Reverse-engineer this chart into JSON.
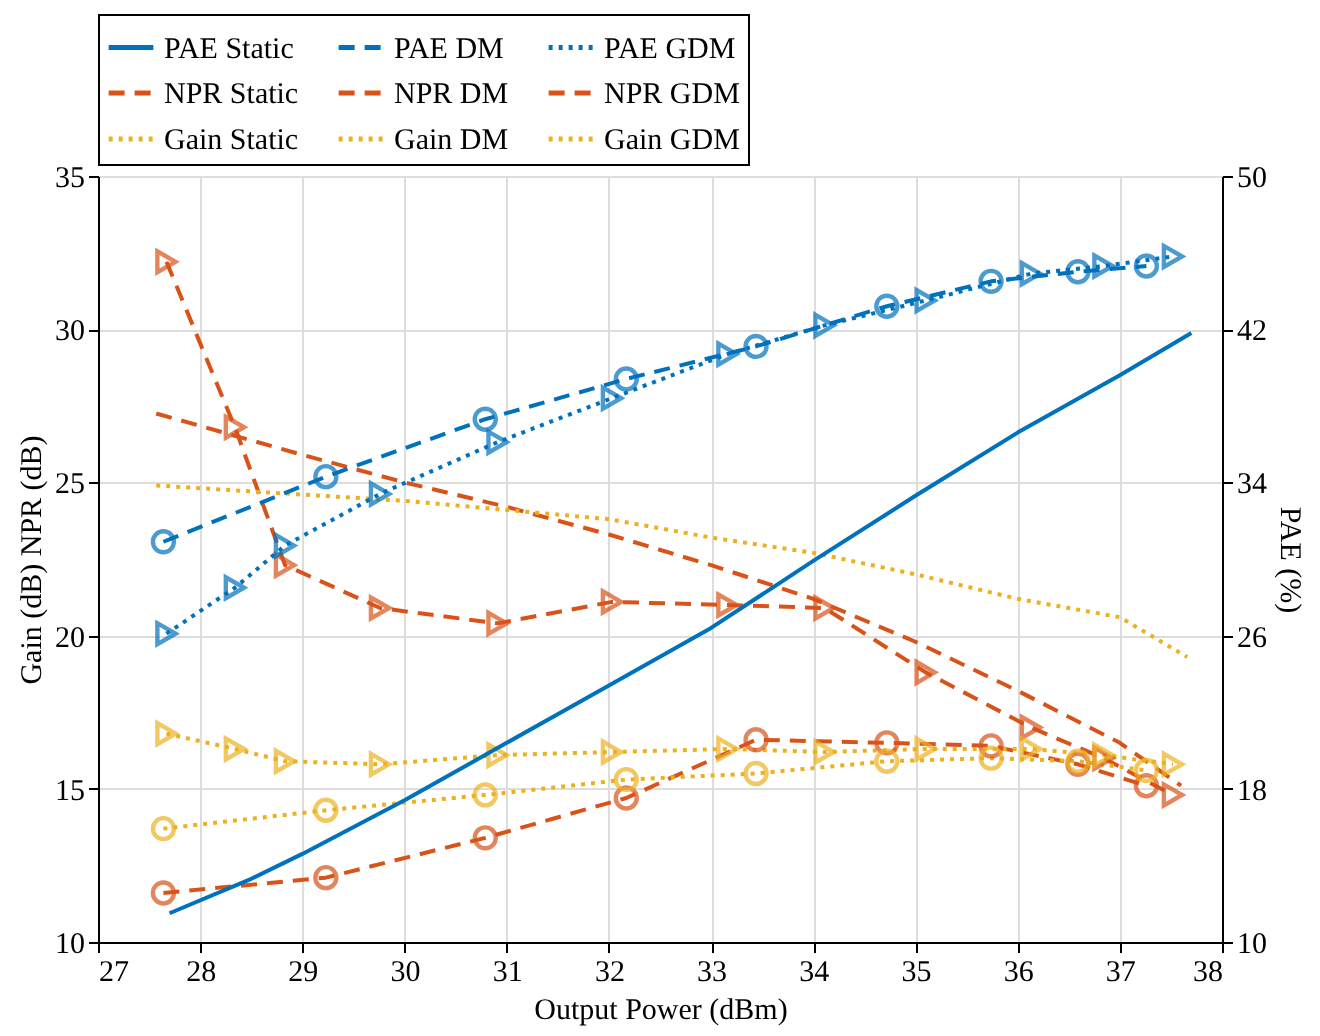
{
  "chart_data": {
    "type": "line",
    "xlabel": "Output Power (dBm)",
    "ylabel": "Gain (dB) NPR (dB)",
    "y2label": "PAE (%)",
    "xlim": [
      27,
      38
    ],
    "xticks": [
      27,
      28,
      29,
      30,
      31,
      32,
      33,
      34,
      35,
      36,
      37,
      38
    ],
    "ylim": [
      10,
      35
    ],
    "yticks": [
      10,
      15,
      20,
      25,
      30,
      35
    ],
    "y2lim": [
      10,
      50
    ],
    "y2ticks": [
      10,
      18,
      26,
      34,
      42,
      50
    ],
    "grid": true,
    "legend": "top",
    "series": [
      {
        "name": "PAE Static",
        "color": "#0072bd",
        "axis": "y2",
        "marker": "none",
        "line_style": "solid",
        "x": [
          27.7,
          28.5,
          29,
          30,
          31,
          32,
          33,
          34,
          35,
          36,
          37,
          37.7
        ],
        "values": [
          11.5,
          13.3,
          14.6,
          17.4,
          20.4,
          23.4,
          26.4,
          29.9,
          33.3,
          36.6,
          39.6,
          41.8
        ]
      },
      {
        "name": "PAE DM",
        "color": "#0072bd",
        "axis": "y2",
        "marker": "circle",
        "line_style": "dashed",
        "x": [
          27.64,
          29.23,
          30.79,
          32.17,
          33.44,
          34.72,
          35.74,
          36.59,
          37.26
        ],
        "values": [
          30.9,
          34.3,
          37.3,
          39.4,
          41.1,
          43.2,
          44.5,
          45.0,
          45.3
        ]
      },
      {
        "name": "PAE GDM",
        "color": "#0072bd",
        "axis": "y2",
        "marker": "triangle",
        "line_style": "dotted",
        "x": [
          27.67,
          28.34,
          28.83,
          29.76,
          30.91,
          32.03,
          33.16,
          34.11,
          35.1,
          36.13,
          36.84,
          37.52
        ],
        "values": [
          26.1,
          28.5,
          30.7,
          33.4,
          36.1,
          38.4,
          40.7,
          42.2,
          43.5,
          44.9,
          45.3,
          45.8
        ]
      },
      {
        "name": "NPR Static",
        "color": "#d95319",
        "marker": "none",
        "line_style": "dashed",
        "x": [
          27.57,
          29,
          30,
          31,
          32,
          33,
          34,
          35,
          36,
          37,
          37.6
        ],
        "values": [
          27.25,
          25.9,
          25.0,
          24.2,
          23.3,
          22.3,
          21.2,
          19.8,
          18.2,
          16.5,
          15.1
        ]
      },
      {
        "name": "NPR DM",
        "color": "#d95319",
        "marker": "circle",
        "line_style": "dashed",
        "x": [
          27.64,
          29.23,
          30.79,
          32.17,
          33.44,
          34.72,
          35.74,
          36.59,
          37.26
        ],
        "values": [
          11.6,
          12.1,
          13.4,
          14.7,
          16.6,
          16.5,
          16.4,
          15.8,
          15.1
        ]
      },
      {
        "name": "NPR GDM",
        "color": "#d95319",
        "marker": "triangle",
        "line_style": "dashed",
        "x": [
          27.67,
          28.34,
          28.83,
          29.76,
          30.91,
          32.03,
          33.16,
          34.11,
          35.1,
          36.13,
          36.84,
          37.52
        ],
        "values": [
          32.2,
          26.8,
          22.3,
          20.9,
          20.4,
          21.1,
          21.0,
          20.9,
          18.8,
          17.0,
          16.0,
          14.8
        ]
      },
      {
        "name": "Gain Static",
        "color": "#edb120",
        "marker": "none",
        "line_style": "dotted",
        "x": [
          27.57,
          29,
          30,
          31,
          32,
          33,
          34,
          35,
          36,
          37,
          37.66
        ],
        "values": [
          24.9,
          24.6,
          24.4,
          24.1,
          23.8,
          23.2,
          22.7,
          22.0,
          21.2,
          20.6,
          19.3
        ]
      },
      {
        "name": "Gain DM",
        "color": "#edb120",
        "marker": "circle",
        "line_style": "dotted",
        "x": [
          27.64,
          29.23,
          30.79,
          32.17,
          33.44,
          34.72,
          35.74,
          36.59,
          37.26
        ],
        "values": [
          13.7,
          14.3,
          14.8,
          15.3,
          15.5,
          15.9,
          16.0,
          15.9,
          15.6
        ]
      },
      {
        "name": "Gain GDM",
        "color": "#edb120",
        "marker": "triangle",
        "line_style": "dotted",
        "x": [
          27.67,
          28.34,
          28.83,
          29.76,
          30.91,
          32.03,
          33.16,
          34.11,
          35.1,
          36.13,
          36.84,
          37.52
        ],
        "values": [
          16.8,
          16.3,
          15.9,
          15.8,
          16.1,
          16.2,
          16.3,
          16.2,
          16.3,
          16.3,
          16.1,
          15.8
        ]
      }
    ]
  }
}
